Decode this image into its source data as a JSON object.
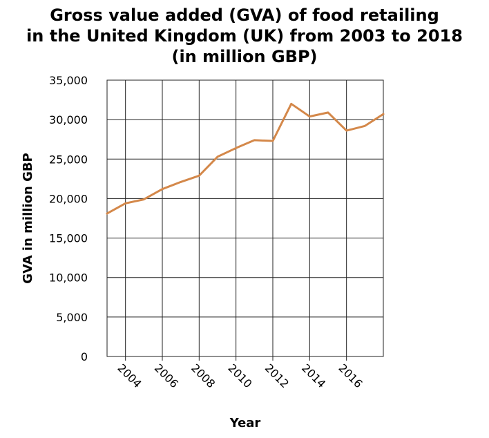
{
  "chart_data": {
    "type": "line",
    "title_lines": [
      "Gross value added (GVA) of food retailing",
      "in the United Kingdom (UK) from 2003 to 2018",
      "(in million GBP)"
    ],
    "xlabel": "Year",
    "ylabel": "GVA in million GBP",
    "xlim": [
      2003,
      2018
    ],
    "ylim": [
      0,
      35000
    ],
    "x_ticks": [
      2004,
      2006,
      2008,
      2010,
      2012,
      2014,
      2016
    ],
    "x_tick_labels": [
      "2004",
      "2006",
      "2008",
      "2010",
      "2012",
      "2014",
      "2016"
    ],
    "y_ticks": [
      0,
      5000,
      10000,
      15000,
      20000,
      25000,
      30000,
      35000
    ],
    "y_tick_labels": [
      "0",
      "5,000",
      "10,000",
      "15,000",
      "20,000",
      "25,000",
      "30,000",
      "35,000"
    ],
    "grid": true,
    "series": [
      {
        "color": "#d4884a",
        "x": [
          2003,
          2004,
          2005,
          2006,
          2007,
          2008,
          2009,
          2010,
          2011,
          2012,
          2013,
          2014,
          2015,
          2016,
          2017,
          2018
        ],
        "y": [
          18100,
          19400,
          19900,
          21200,
          22100,
          22900,
          25300,
          26400,
          27400,
          27300,
          32000,
          30400,
          30900,
          28600,
          29200,
          30700
        ]
      }
    ]
  }
}
